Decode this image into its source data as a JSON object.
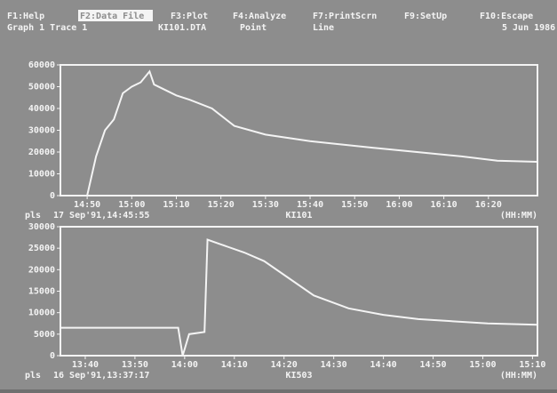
{
  "menu": [
    "F1:Help",
    "F2:Data File",
    "F3:Plot",
    "F4:Analyze",
    "F7:PrintScrn",
    "F9:SetUp",
    "F10:Escape"
  ],
  "status": [
    "Graph 1 Trace 1",
    "KI101.DTA",
    "Point",
    "Line",
    "5 Jun 1986"
  ],
  "chart_data": [
    {
      "type": "line",
      "color": "#f4f4f4",
      "unit_label": "pls",
      "timestamp": "17 Sep'91,14:45:55",
      "trace_name": "KI101",
      "x_unit": "(HH:MM)",
      "x": [
        884,
        890,
        892,
        894,
        896,
        898,
        900,
        902,
        904,
        905,
        907,
        910,
        913,
        918,
        923,
        930,
        940,
        954,
        964,
        974,
        982,
        991
      ],
      "values": [
        0,
        0,
        18000,
        30000,
        35000,
        47000,
        50000,
        52000,
        57000,
        51000,
        49000,
        46000,
        44000,
        40000,
        32000,
        28000,
        25000,
        22000,
        20000,
        18000,
        16000,
        15500
      ],
      "xlim": [
        884,
        991
      ],
      "ylim": [
        0,
        60000
      ],
      "xticks": [
        {
          "value": 890,
          "label": "14:50"
        },
        {
          "value": 900,
          "label": "15:00"
        },
        {
          "value": 910,
          "label": "15:10"
        },
        {
          "value": 920,
          "label": "15:20"
        },
        {
          "value": 930,
          "label": "15:30"
        },
        {
          "value": 940,
          "label": "15:40"
        },
        {
          "value": 950,
          "label": "15:50"
        },
        {
          "value": 960,
          "label": "16:00"
        },
        {
          "value": 970,
          "label": "16:10"
        },
        {
          "value": 980,
          "label": "16:20"
        }
      ],
      "yticks": [
        0,
        10000,
        20000,
        30000,
        40000,
        50000,
        60000
      ]
    },
    {
      "type": "line",
      "color": "#f4f4f4",
      "unit_label": "pls",
      "timestamp": "16 Sep'91,13:37:17",
      "trace_name": "KI503",
      "x_unit": "(HH:MM)",
      "x": [
        815,
        838.7,
        839.6,
        840.9,
        844,
        844.6,
        847,
        852,
        856,
        861,
        866,
        873,
        880,
        887,
        894,
        901,
        911
      ],
      "values": [
        6500,
        6500,
        0,
        5000,
        5500,
        27000,
        26000,
        24000,
        22000,
        18000,
        14000,
        11000,
        9500,
        8500,
        8000,
        7500,
        7200
      ],
      "xlim": [
        815,
        911
      ],
      "ylim": [
        0,
        30000
      ],
      "xticks": [
        {
          "value": 820,
          "label": "13:40"
        },
        {
          "value": 830,
          "label": "13:50"
        },
        {
          "value": 840,
          "label": "14:00"
        },
        {
          "value": 850,
          "label": "14:10"
        },
        {
          "value": 860,
          "label": "14:20"
        },
        {
          "value": 870,
          "label": "14:30"
        },
        {
          "value": 880,
          "label": "14:40"
        },
        {
          "value": 890,
          "label": "14:50"
        },
        {
          "value": 900,
          "label": "15:00"
        },
        {
          "value": 910,
          "label": "15:10"
        }
      ],
      "yticks": [
        0,
        5000,
        10000,
        15000,
        20000,
        25000,
        30000
      ]
    }
  ]
}
